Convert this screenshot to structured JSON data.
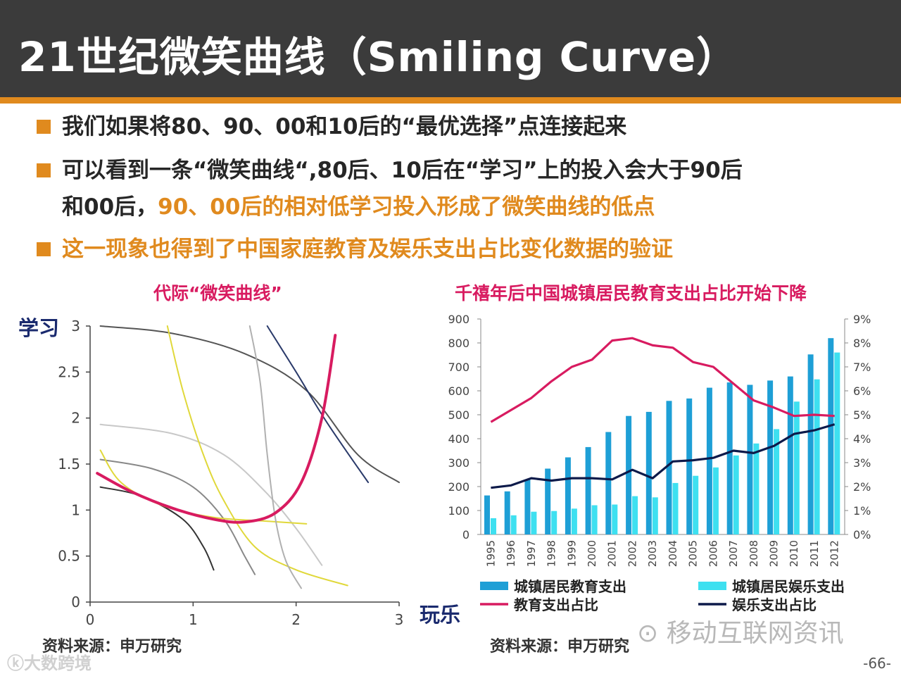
{
  "title": "21世纪微笑曲线（Smiling Curve）",
  "bullets": {
    "b1": "我们如果将80、90、00和10后的“最优选择”点连接起来",
    "b2_line1": "可以看到一条“微笑曲线“,80后、10后在“学习”上的投入会大于90后",
    "b2_line2_plain": "和00后，",
    "b2_line2_orange": "90、00后的相对低学习投入形成了微笑曲线的低点",
    "b3": "这一现象也得到了中国家庭教育及娱乐支出占比变化数据的验证"
  },
  "left": {
    "y_side_label": "学习",
    "x_side_label": "玩乐",
    "source": "资料来源：申万研究"
  },
  "right": {
    "source": "资料来源：申万研究"
  },
  "watermarks": {
    "wechat": "移动互联网资讯",
    "brand": "大数跨境"
  },
  "page_number": "-66-",
  "colors": {
    "orange": "#e08a1e",
    "magenta": "#d81b60",
    "blue": "#1e9fd6",
    "cyan": "#3ee0f0",
    "navy": "#0d1a4a"
  },
  "chart_data": [
    {
      "type": "line",
      "title": "代际“微笑曲线”",
      "xlabel": "",
      "ylabel": "",
      "xlim": [
        0,
        3
      ],
      "ylim": [
        0,
        3
      ],
      "x_ticks": [
        "0",
        "1",
        "2",
        "3"
      ],
      "y_ticks": [
        "0",
        "0.5",
        "1",
        "1.5",
        "2",
        "2.5",
        "3"
      ],
      "series": [
        {
          "name": "smile",
          "color": "#d81b60",
          "width": 4,
          "points": [
            [
              0.07,
              1.4
            ],
            [
              0.4,
              1.2
            ],
            [
              0.8,
              1.02
            ],
            [
              1.2,
              0.9
            ],
            [
              1.5,
              0.87
            ],
            [
              1.8,
              0.97
            ],
            [
              2.05,
              1.3
            ],
            [
              2.25,
              2.0
            ],
            [
              2.38,
              2.9
            ]
          ]
        },
        {
          "name": "dark-1",
          "color": "#555555",
          "width": 2,
          "points": [
            [
              0.1,
              3.0
            ],
            [
              0.8,
              2.92
            ],
            [
              1.5,
              2.7
            ],
            [
              2.1,
              2.3
            ],
            [
              2.6,
              1.6
            ],
            [
              3.0,
              1.3
            ]
          ]
        },
        {
          "name": "navy-1",
          "color": "#2a3a6a",
          "width": 2,
          "points": [
            [
              1.72,
              3.0
            ],
            [
              2.0,
              2.5
            ],
            [
              2.3,
              1.95
            ],
            [
              2.7,
              1.3
            ]
          ]
        },
        {
          "name": "lightgray-1",
          "color": "#c8c8c8",
          "width": 2,
          "points": [
            [
              0.1,
              1.93
            ],
            [
              0.8,
              1.83
            ],
            [
              1.3,
              1.6
            ],
            [
              1.7,
              1.2
            ],
            [
              2.0,
              0.8
            ],
            [
              2.25,
              0.4
            ]
          ]
        },
        {
          "name": "gray-1",
          "color": "#888888",
          "width": 2,
          "points": [
            [
              0.1,
              1.55
            ],
            [
              0.6,
              1.45
            ],
            [
              1.0,
              1.25
            ],
            [
              1.3,
              0.9
            ],
            [
              1.5,
              0.5
            ],
            [
              1.6,
              0.3
            ]
          ]
        },
        {
          "name": "black-1",
          "color": "#333333",
          "width": 2,
          "points": [
            [
              0.1,
              1.25
            ],
            [
              0.5,
              1.15
            ],
            [
              0.9,
              0.9
            ],
            [
              1.1,
              0.6
            ],
            [
              1.2,
              0.35
            ]
          ]
        },
        {
          "name": "yellow-1",
          "color": "#e0d83a",
          "width": 2,
          "points": [
            [
              0.1,
              1.65
            ],
            [
              0.3,
              1.3
            ],
            [
              0.7,
              1.05
            ],
            [
              1.2,
              0.92
            ],
            [
              1.7,
              0.88
            ],
            [
              2.1,
              0.85
            ]
          ]
        },
        {
          "name": "yellow-2",
          "color": "#e0d83a",
          "width": 2,
          "points": [
            [
              0.75,
              3.0
            ],
            [
              0.9,
              2.3
            ],
            [
              1.1,
              1.6
            ],
            [
              1.3,
              1.1
            ],
            [
              1.6,
              0.6
            ],
            [
              2.0,
              0.35
            ],
            [
              2.5,
              0.18
            ]
          ]
        },
        {
          "name": "silver-1",
          "color": "#b0b0b0",
          "width": 2,
          "points": [
            [
              1.55,
              3.0
            ],
            [
              1.65,
              2.4
            ],
            [
              1.72,
              1.6
            ],
            [
              1.8,
              0.9
            ],
            [
              1.9,
              0.45
            ],
            [
              2.05,
              0.15
            ]
          ]
        }
      ]
    },
    {
      "type": "bar",
      "title": "千禧年后中国城镇居民教育支出占比开始下降",
      "categories": [
        "1995",
        "1996",
        "1997",
        "1998",
        "1999",
        "2000",
        "2001",
        "2002",
        "2003",
        "2004",
        "2005",
        "2006",
        "2007",
        "2008",
        "2009",
        "2010",
        "2011",
        "2012"
      ],
      "ylim": [
        0,
        900
      ],
      "y_ticks": [
        "0",
        "100",
        "200",
        "300",
        "400",
        "500",
        "600",
        "700",
        "800",
        "900"
      ],
      "y2lim": [
        0,
        9
      ],
      "y2_ticks": [
        "0%",
        "1%",
        "2%",
        "3%",
        "4%",
        "5%",
        "6%",
        "7%",
        "8%",
        "9%"
      ],
      "series": [
        {
          "name": "城镇居民教育支出",
          "kind": "bar",
          "axis": "left",
          "color": "#1e9fd6",
          "values": [
            163,
            180,
            230,
            275,
            322,
            365,
            428,
            495,
            512,
            558,
            568,
            613,
            635,
            625,
            643,
            660,
            752,
            820
          ]
        },
        {
          "name": "城镇居民娱乐支出",
          "kind": "bar",
          "axis": "left",
          "color": "#3ee0f0",
          "values": [
            68,
            80,
            95,
            98,
            108,
            122,
            125,
            160,
            155,
            215,
            245,
            280,
            330,
            380,
            440,
            555,
            648,
            760
          ]
        },
        {
          "name": "教育支出占比",
          "kind": "line",
          "axis": "right",
          "color": "#d81b60",
          "values": [
            4.7,
            5.2,
            5.7,
            6.4,
            7.0,
            7.3,
            8.1,
            8.2,
            7.9,
            7.8,
            7.2,
            7.0,
            6.3,
            5.6,
            5.3,
            4.95,
            5.0,
            4.95
          ]
        },
        {
          "name": "娱乐支出占比",
          "kind": "line",
          "axis": "right",
          "color": "#0d1a4a",
          "values": [
            1.95,
            2.05,
            2.35,
            2.25,
            2.35,
            2.35,
            2.3,
            2.7,
            2.35,
            3.05,
            3.1,
            3.2,
            3.5,
            3.4,
            3.7,
            4.2,
            4.35,
            4.6
          ]
        }
      ]
    }
  ]
}
